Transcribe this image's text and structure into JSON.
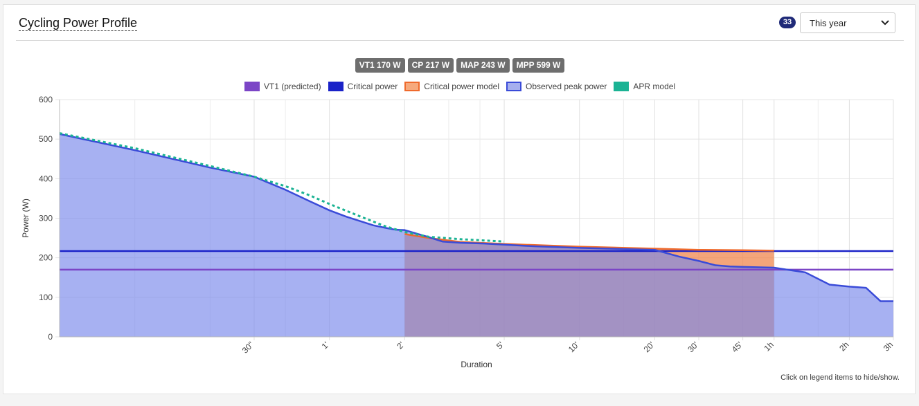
{
  "header": {
    "title": "Cycling Power Profile",
    "count_badge": "33",
    "period_select": {
      "value": "This year"
    }
  },
  "metrics": [
    "VT1 170 W",
    "CP 217 W",
    "MAP 243 W",
    "MPP 599 W"
  ],
  "legend": [
    {
      "label": "VT1 (predicted)",
      "fill": "#7b45c6",
      "border": "#7b45c6"
    },
    {
      "label": "Critical power",
      "fill": "#1a22c8",
      "border": "#1a22c8"
    },
    {
      "label": "Critical power model",
      "fill": "#f6a97c",
      "border": "#ef6a2c"
    },
    {
      "label": "Observed peak power",
      "fill": "#a6afee",
      "border": "#3a4bd8"
    },
    {
      "label": "APR model",
      "fill": "#1bb394",
      "border": "#1bb394",
      "dashed": true
    }
  ],
  "hint": "Click on legend items to hide/show.",
  "chart_data": {
    "type": "line",
    "ylabel": "Power (W)",
    "xlabel": "Duration",
    "x_scale": "log",
    "x_unit": "seconds",
    "xlim": [
      5,
      10800
    ],
    "ylim": [
      0,
      600
    ],
    "y_ticks": [
      0,
      100,
      200,
      300,
      400,
      500,
      600
    ],
    "x_ticks": [
      {
        "value": 30,
        "label": "30\""
      },
      {
        "value": 60,
        "label": "1'"
      },
      {
        "value": 120,
        "label": "2'"
      },
      {
        "value": 300,
        "label": "5'"
      },
      {
        "value": 600,
        "label": "10'"
      },
      {
        "value": 1200,
        "label": "20'"
      },
      {
        "value": 1800,
        "label": "30'"
      },
      {
        "value": 2700,
        "label": "45'"
      },
      {
        "value": 3600,
        "label": "1h"
      },
      {
        "value": 7200,
        "label": "2h"
      },
      {
        "value": 10800,
        "label": "3h"
      }
    ],
    "x_grid_minor": [
      10,
      20,
      40,
      180,
      240,
      900,
      5400
    ],
    "series": [
      {
        "name": "VT1 (predicted)",
        "kind": "hline",
        "color": "#7b45c6",
        "value": 170
      },
      {
        "name": "Critical power",
        "kind": "hline",
        "color": "#1a22c8",
        "value": 217
      },
      {
        "name": "Critical power model",
        "kind": "area",
        "color": "#ef6a2c",
        "fill": "rgba(240,130,70,0.72)",
        "x": [
          120,
          150,
          200,
          300,
          600,
          1200,
          1800,
          2700,
          3600
        ],
        "y": [
          260,
          250,
          240,
          235,
          228,
          223,
          220,
          219,
          218
        ]
      },
      {
        "name": "Observed peak power",
        "kind": "area",
        "color": "#3a4bd8",
        "fill": "rgba(120,135,235,0.65)",
        "x": [
          5,
          10,
          20,
          30,
          40,
          50,
          60,
          70,
          90,
          100,
          110,
          120,
          150,
          170,
          200,
          250,
          300,
          400,
          600,
          900,
          1200,
          1500,
          1800,
          2100,
          2400,
          2700,
          3600,
          4800,
          6000,
          7200,
          8400,
          9600,
          10800
        ],
        "y": [
          513,
          472,
          428,
          405,
          372,
          343,
          320,
          304,
          282,
          276,
          271,
          270,
          252,
          241,
          238,
          236,
          233,
          229,
          225,
          222,
          220,
          203,
          192,
          181,
          178,
          177,
          175,
          163,
          132,
          127,
          124,
          90,
          90
        ]
      },
      {
        "name": "APR model",
        "kind": "line",
        "dashed": true,
        "color": "#1bb394",
        "x": [
          5,
          10,
          20,
          30,
          40,
          50,
          60,
          80,
          100,
          120,
          150,
          200,
          300
        ],
        "y": [
          515,
          477,
          432,
          405,
          381,
          358,
          336,
          304,
          280,
          265,
          253,
          247,
          241
        ]
      }
    ]
  }
}
